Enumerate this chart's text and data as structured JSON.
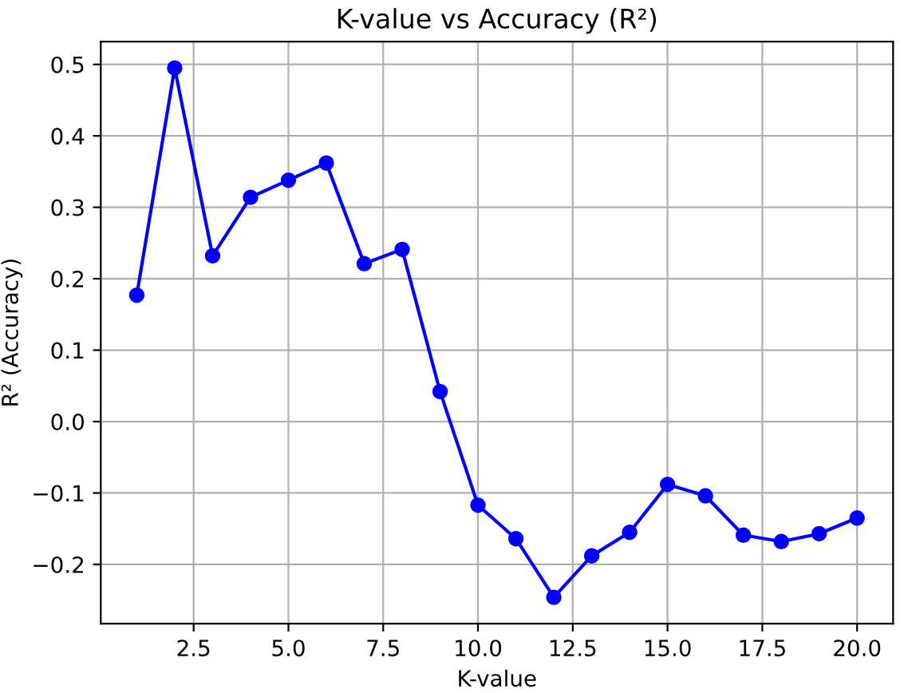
{
  "chart_data": {
    "type": "line",
    "title": "K-value vs Accuracy (R²)",
    "xlabel": "K-value",
    "ylabel": "R² (Accuracy)",
    "x": [
      1,
      2,
      3,
      4,
      5,
      6,
      7,
      8,
      9,
      10,
      11,
      12,
      13,
      14,
      15,
      16,
      17,
      18,
      19,
      20
    ],
    "series": [
      {
        "color": "#0000ff",
        "values": [
          0.177,
          0.495,
          0.232,
          0.314,
          0.338,
          0.362,
          0.221,
          0.241,
          0.042,
          -0.117,
          -0.164,
          -0.246,
          -0.188,
          -0.155,
          -0.088,
          -0.104,
          -0.159,
          -0.168,
          -0.157,
          -0.135
        ]
      }
    ],
    "xlim": [
      0.05,
      20.95
    ],
    "xticks": [
      {
        "value": 2.5,
        "label": "2.5"
      },
      {
        "value": 5,
        "label": "5.0"
      },
      {
        "value": 7.5,
        "label": "7.5"
      },
      {
        "value": 10,
        "label": "10.0"
      },
      {
        "value": 12.5,
        "label": "12.5"
      },
      {
        "value": 15,
        "label": "15.0"
      },
      {
        "value": 17.5,
        "label": "17.5"
      },
      {
        "value": 20,
        "label": "20.0"
      }
    ],
    "ylim": [
      -0.283,
      0.532
    ],
    "yticks": [
      {
        "value": -0.2,
        "label": "−0.2"
      },
      {
        "value": -0.1,
        "label": "−0.1"
      },
      {
        "value": 0,
        "label": "0.0"
      },
      {
        "value": 0.1,
        "label": "0.1"
      },
      {
        "value": 0.2,
        "label": "0.2"
      },
      {
        "value": 0.3,
        "label": "0.3"
      },
      {
        "value": 0.4,
        "label": "0.4"
      },
      {
        "value": 0.5,
        "label": "0.5"
      }
    ],
    "grid": true,
    "marker": "circle",
    "line_style": "solid"
  }
}
